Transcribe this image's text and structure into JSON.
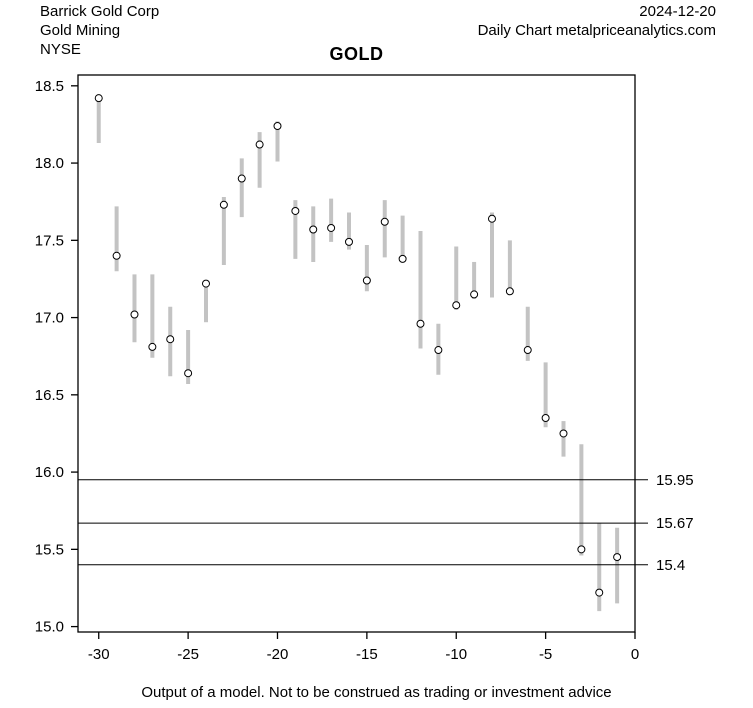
{
  "header": {
    "company": "Barrick Gold Corp",
    "industry": "Gold Mining",
    "exchange": "NYSE",
    "date": "2024-12-20",
    "chart_type_line": "Daily Chart metalpriceanalytics.com"
  },
  "footer": {
    "disclaimer": "Output of a model. Not to be construed as trading or investment advice"
  },
  "chart_data": {
    "type": "bar",
    "subtype": "high-low-range-with-close-dot",
    "title": "GOLD",
    "xlabel": "",
    "ylabel": "",
    "x": [
      -30,
      -29,
      -28,
      -27,
      -26,
      -25,
      -24,
      -23,
      -22,
      -21,
      -20,
      -19,
      -18,
      -17,
      -16,
      -15,
      -14,
      -13,
      -12,
      -11,
      -10,
      -9,
      -8,
      -7,
      -6,
      -5,
      -4,
      -3,
      -2,
      -1
    ],
    "series": [
      {
        "name": "High",
        "values": [
          18.43,
          17.72,
          17.28,
          17.28,
          17.07,
          16.92,
          17.24,
          17.78,
          18.03,
          18.2,
          18.27,
          17.76,
          17.72,
          17.77,
          17.68,
          17.47,
          17.76,
          17.66,
          17.56,
          16.96,
          17.46,
          17.36,
          17.68,
          17.5,
          17.07,
          16.71,
          16.33,
          16.18,
          15.67,
          15.64
        ]
      },
      {
        "name": "Low",
        "values": [
          18.13,
          17.3,
          16.84,
          16.74,
          16.62,
          16.57,
          16.97,
          17.34,
          17.65,
          17.84,
          18.01,
          17.38,
          17.36,
          17.49,
          17.44,
          17.17,
          17.39,
          17.37,
          16.8,
          16.63,
          17.05,
          17.12,
          17.13,
          17.15,
          16.72,
          16.29,
          16.1,
          15.46,
          15.1,
          15.15
        ]
      },
      {
        "name": "Close",
        "values": [
          18.42,
          17.4,
          17.02,
          16.81,
          16.86,
          16.64,
          17.22,
          17.73,
          17.9,
          18.12,
          18.24,
          17.69,
          17.57,
          17.58,
          17.49,
          17.24,
          17.62,
          17.38,
          16.96,
          16.79,
          17.08,
          17.15,
          17.64,
          17.17,
          16.79,
          16.35,
          16.25,
          15.5,
          15.22,
          15.45
        ]
      }
    ],
    "xlim": [
      -31.16,
      0
    ],
    "ylim": [
      14.965,
      18.57
    ],
    "xticks": [
      -30,
      -25,
      -20,
      -15,
      -10,
      -5,
      0
    ],
    "yticks": [
      15.0,
      15.5,
      16.0,
      16.5,
      17.0,
      17.5,
      18.0,
      18.5
    ],
    "ref_lines": [
      {
        "value": 15.95,
        "label": "15.95"
      },
      {
        "value": 15.67,
        "label": "15.67"
      },
      {
        "value": 15.4,
        "label": "15.4"
      }
    ],
    "grid": false,
    "legend": "none",
    "colors": {
      "bar": "#c3c3c3",
      "axis": "#000000",
      "dot_fill": "#ffffff",
      "background": "#ffffff"
    }
  }
}
